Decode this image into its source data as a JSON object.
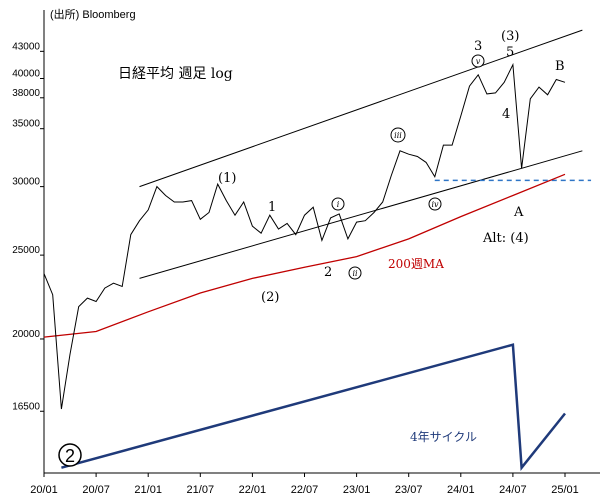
{
  "source": "(出所) Bloomberg",
  "title": "日経平均 週足 log",
  "ma_label": "200週MA",
  "cycle_label": "4年サイクル",
  "alt_label": "Alt: (4)",
  "colors": {
    "price": "#000000",
    "ma": "#c00000",
    "cycle": "#1f3a7a",
    "support": "#2f75c6",
    "channel": "#000000"
  },
  "wave_labels": {
    "w1p": "(1)",
    "w1": "1",
    "w2": "2",
    "w2p": "(2)",
    "w3": "3",
    "w5": "5",
    "w3p": "(3)",
    "w4": "4",
    "wA": "A",
    "wB": "B",
    "big2": "2"
  },
  "circled_labels": {
    "i": "i",
    "ii": "ii",
    "iii": "iii",
    "iv": "iv",
    "v": "v"
  },
  "chart_data": {
    "type": "line",
    "title": "日経平均 週足 log",
    "y_scale": "log",
    "ylim": [
      14000,
      48000
    ],
    "yticks": [
      16500,
      20000,
      25000,
      30000,
      35000,
      38000,
      40000,
      43000
    ],
    "ytick_labels": [
      "16500",
      "20000",
      "25000",
      "30000",
      "35000",
      "38000",
      "40000",
      "43000"
    ],
    "xticks": [
      "20/01",
      "20/07",
      "21/01",
      "21/07",
      "22/01",
      "22/07",
      "23/01",
      "23/07",
      "24/01",
      "24/07",
      "25/01"
    ],
    "series": [
      {
        "name": "日経平均",
        "x": [
          "2020-01",
          "2020-02",
          "2020-03",
          "2020-04",
          "2020-05",
          "2020-06",
          "2020-07",
          "2020-08",
          "2020-09",
          "2020-10",
          "2020-11",
          "2020-12",
          "2021-01",
          "2021-02",
          "2021-03",
          "2021-04",
          "2021-05",
          "2021-06",
          "2021-07",
          "2021-08",
          "2021-09",
          "2021-10",
          "2021-11",
          "2021-12",
          "2022-01",
          "2022-02",
          "2022-03",
          "2022-04",
          "2022-05",
          "2022-06",
          "2022-07",
          "2022-08",
          "2022-09",
          "2022-10",
          "2022-11",
          "2022-12",
          "2023-01",
          "2023-02",
          "2023-03",
          "2023-04",
          "2023-05",
          "2023-06",
          "2023-07",
          "2023-08",
          "2023-09",
          "2023-10",
          "2023-11",
          "2023-12",
          "2024-01",
          "2024-02",
          "2024-03",
          "2024-04",
          "2024-05",
          "2024-06",
          "2024-07",
          "2024-08",
          "2024-09",
          "2024-10",
          "2024-11",
          "2024-12",
          "2025-01"
        ],
        "values": [
          23800,
          22500,
          16600,
          19200,
          21800,
          22300,
          22100,
          22900,
          23200,
          23000,
          26400,
          27400,
          28200,
          30000,
          29300,
          28800,
          28800,
          28900,
          27500,
          28000,
          30200,
          28900,
          27800,
          28800,
          27000,
          26500,
          27800,
          26800,
          27200,
          26400,
          27800,
          28400,
          26000,
          27600,
          27900,
          26100,
          27300,
          27400,
          28000,
          28800,
          30900,
          33000,
          32700,
          32500,
          32000,
          30800,
          33500,
          33500,
          36200,
          39200,
          40400,
          38400,
          38500,
          39600,
          41500,
          31500,
          37900,
          39100,
          38300,
          39900,
          39600
        ]
      },
      {
        "name": "200週MA",
        "x": [
          "2020-01",
          "2020-07",
          "2021-01",
          "2021-07",
          "2022-01",
          "2022-07",
          "2023-01",
          "2023-07",
          "2024-01",
          "2024-07",
          "2025-01"
        ],
        "values": [
          20100,
          20400,
          21500,
          22600,
          23500,
          24200,
          24900,
          26100,
          27700,
          29300,
          31000
        ]
      },
      {
        "name": "4年サイクル",
        "x": [
          "2020-03",
          "2024-07",
          "2024-08",
          "2025-01"
        ],
        "values": [
          14200,
          19700,
          14200,
          16400
        ]
      }
    ],
    "support_level": 30500,
    "channel_upper": [
      {
        "x": "2020-12",
        "y": 30000
      },
      {
        "x": "2025-03",
        "y": 45500
      }
    ],
    "channel_lower": [
      {
        "x": "2020-12",
        "y": 23500
      },
      {
        "x": "2025-03",
        "y": 33000
      }
    ]
  }
}
